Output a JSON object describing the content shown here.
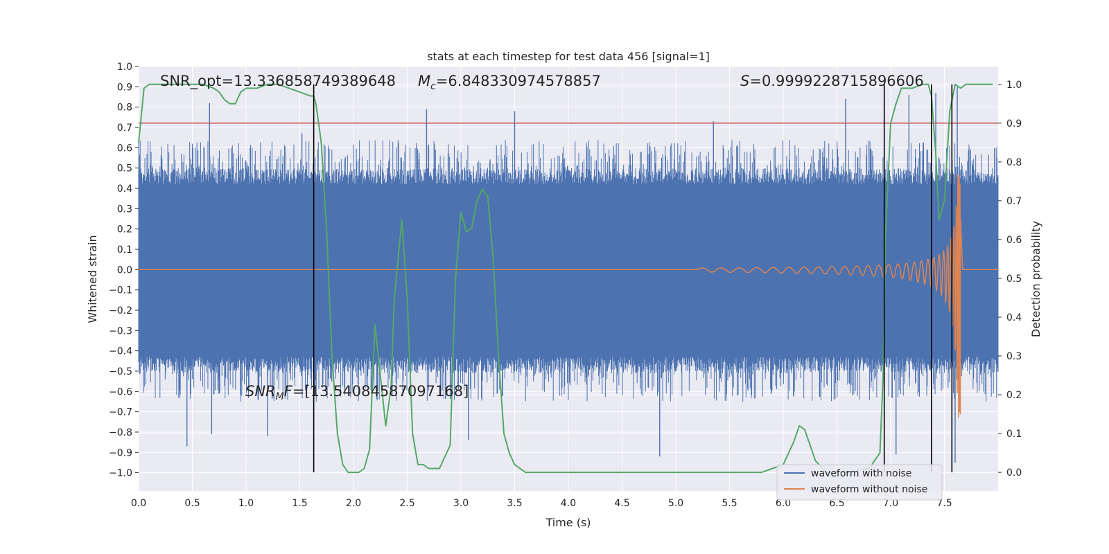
{
  "chart_data": {
    "type": "line",
    "title": "stats at each timestep for test data 456 [signal=1]",
    "xlabel": "Time (s)",
    "ylabel": "Whitened strain",
    "y2label": "Detection probability",
    "xlim": [
      0.0,
      8.0
    ],
    "ylim": [
      -1.09,
      1.0
    ],
    "y2lim": [
      -0.048,
      1.046
    ],
    "x_ticks": [
      "0.0",
      "0.5",
      "1.0",
      "1.5",
      "2.0",
      "2.5",
      "3.0",
      "3.5",
      "4.0",
      "4.5",
      "5.0",
      "5.5",
      "6.0",
      "6.5",
      "7.0",
      "7.5"
    ],
    "y_ticks": [
      "1.0",
      "0.9",
      "0.8",
      "0.7",
      "0.6",
      "0.5",
      "0.4",
      "0.3",
      "0.2",
      "0.1",
      "0.0",
      "−0.1",
      "−0.2",
      "−0.3",
      "−0.4",
      "−0.5",
      "−0.6",
      "−0.7",
      "−0.8",
      "−0.9",
      "−1.0"
    ],
    "y2_ticks": [
      "1.0",
      "0.9",
      "0.8",
      "0.7",
      "0.6",
      "0.5",
      "0.4",
      "0.3",
      "0.2",
      "0.1",
      "0.0"
    ],
    "grid": true,
    "legend_position": "lower-right",
    "series": [
      {
        "name": "waveform with noise",
        "color": "#4c72b0",
        "axis": "left",
        "envelope": true,
        "core_range": [
          -0.43,
          0.42
        ],
        "upper_peaks": [
          {
            "x": 0.66,
            "y": 0.82
          },
          {
            "x": 1.52,
            "y": 0.67
          },
          {
            "x": 2.68,
            "y": 0.79
          },
          {
            "x": 3.5,
            "y": 0.78
          },
          {
            "x": 5.35,
            "y": 0.73
          },
          {
            "x": 6.58,
            "y": 0.84
          },
          {
            "x": 7.17,
            "y": 0.86
          },
          {
            "x": 7.42,
            "y": 0.87
          },
          {
            "x": 7.62,
            "y": 0.9
          }
        ],
        "lower_peaks": [
          {
            "x": 0.45,
            "y": -0.87
          },
          {
            "x": 0.68,
            "y": -0.81
          },
          {
            "x": 1.2,
            "y": -0.82
          },
          {
            "x": 3.07,
            "y": -0.84
          },
          {
            "x": 4.85,
            "y": -0.92
          },
          {
            "x": 7.05,
            "y": -0.91
          },
          {
            "x": 7.6,
            "y": -0.95
          }
        ]
      },
      {
        "name": "waveform without noise",
        "color": "#dd8452",
        "axis": "left",
        "chirp_start": 5.2,
        "merger_time": 7.65,
        "peak_amplitude": [
          0.47,
          -0.73
        ]
      },
      {
        "name": "",
        "color": "#55a868",
        "axis": "right",
        "x": [
          0.0,
          0.05,
          0.1,
          0.2,
          0.3,
          0.4,
          0.5,
          0.6,
          0.7,
          0.75,
          0.8,
          0.85,
          0.9,
          0.95,
          1.0,
          1.05,
          1.1,
          1.2,
          1.3,
          1.4,
          1.5,
          1.6,
          1.63,
          1.65,
          1.7,
          1.75,
          1.8,
          1.85,
          1.9,
          1.95,
          2.0,
          2.05,
          2.1,
          2.15,
          2.2,
          2.25,
          2.3,
          2.35,
          2.38,
          2.45,
          2.5,
          2.55,
          2.6,
          2.65,
          2.7,
          2.8,
          2.9,
          2.95,
          3.0,
          3.05,
          3.1,
          3.15,
          3.2,
          3.25,
          3.3,
          3.35,
          3.4,
          3.45,
          3.5,
          3.6,
          3.7,
          4.0,
          4.5,
          5.0,
          5.3,
          5.5,
          5.8,
          5.9,
          6.0,
          6.1,
          6.15,
          6.2,
          6.25,
          6.3,
          6.4,
          6.6,
          6.8,
          6.9,
          6.93,
          6.95,
          7.0,
          7.05,
          7.1,
          7.2,
          7.3,
          7.35,
          7.38,
          7.42,
          7.45,
          7.5,
          7.55,
          7.6,
          7.65,
          7.7,
          7.8,
          7.95
        ],
        "values": [
          0.85,
          0.99,
          1.0,
          1.0,
          1.0,
          1.0,
          1.0,
          1.0,
          0.99,
          0.98,
          0.96,
          0.95,
          0.95,
          0.98,
          0.99,
          0.99,
          0.99,
          1.0,
          1.0,
          0.99,
          0.98,
          0.97,
          0.97,
          0.95,
          0.85,
          0.62,
          0.3,
          0.1,
          0.02,
          0.0,
          0.0,
          0.0,
          0.01,
          0.06,
          0.38,
          0.25,
          0.12,
          0.22,
          0.45,
          0.65,
          0.45,
          0.1,
          0.02,
          0.02,
          0.01,
          0.01,
          0.07,
          0.5,
          0.67,
          0.62,
          0.63,
          0.7,
          0.73,
          0.71,
          0.55,
          0.3,
          0.1,
          0.05,
          0.02,
          0.0,
          0.0,
          0.0,
          0.0,
          0.0,
          0.0,
          0.0,
          0.0,
          0.01,
          0.02,
          0.08,
          0.12,
          0.11,
          0.07,
          0.03,
          0.0,
          0.0,
          0.01,
          0.05,
          0.25,
          0.6,
          0.9,
          0.95,
          0.99,
          0.99,
          1.0,
          1.0,
          0.97,
          0.82,
          0.65,
          0.7,
          0.93,
          1.0,
          0.99,
          1.0,
          1.0,
          1.0
        ]
      }
    ],
    "reference_line": {
      "axis": "right",
      "value": 0.9,
      "color": "#c44e52"
    },
    "vertical_markers": [
      1.63,
      6.94,
      7.38,
      7.57
    ],
    "annotations": {
      "snr_opt": "SNR_opt=13.336858749389648",
      "mc": "=6.848330974578857",
      "s": "=0.9999228715896606",
      "snr_mf": "=[13.54084587097168]"
    }
  }
}
